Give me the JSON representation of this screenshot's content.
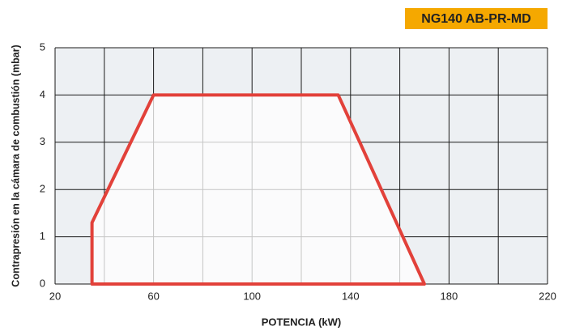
{
  "chart_data": {
    "type": "area",
    "title": "NG140 AB-PR-MD",
    "x_label": "POTENCIA (kW)",
    "y_label": "Contrapresión en la cámara de combustión (mbar)",
    "x": [
      35,
      35,
      60,
      135,
      170
    ],
    "series": [
      {
        "color": "#e2413a",
        "values": [
          0,
          1.3,
          4,
          4,
          0
        ]
      }
    ],
    "closed": true,
    "xlim": [
      20,
      220
    ],
    "xticks": [
      20,
      60,
      100,
      140,
      180,
      220
    ],
    "x_minor_ticks": [
      40,
      80,
      120,
      160,
      200
    ],
    "ylim": [
      0,
      5
    ],
    "yticks": [
      0,
      1,
      2,
      3,
      4,
      5
    ],
    "grid": true
  }
}
